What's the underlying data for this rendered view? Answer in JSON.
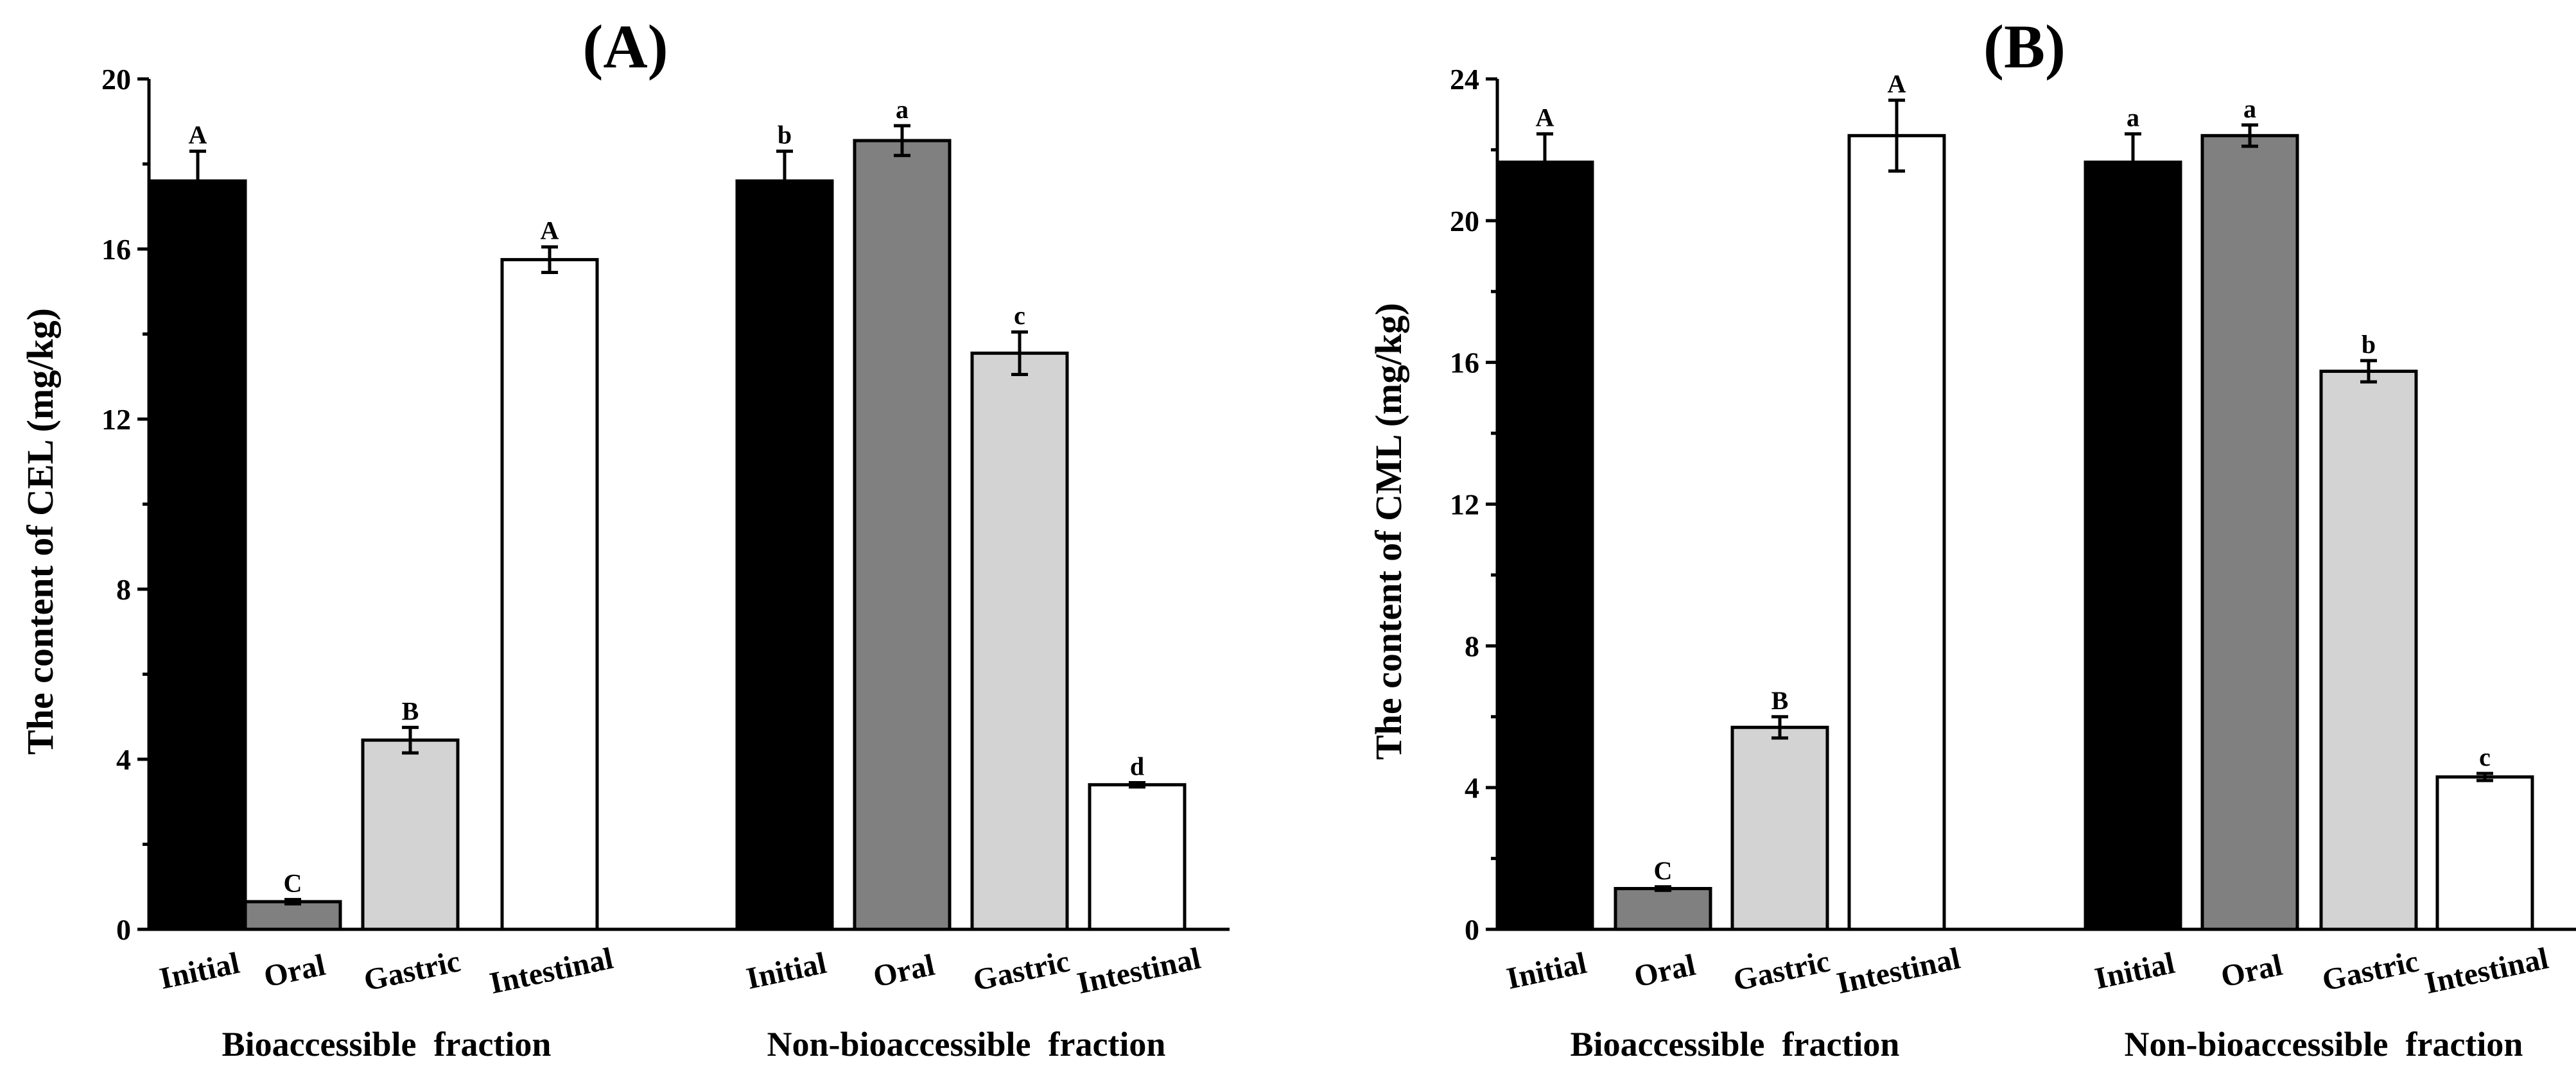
{
  "colors": {
    "Initial": "#000000",
    "Oral": "#808080",
    "Gastric": "#d3d3d3",
    "Intestinal": "#ffffff"
  },
  "chart_data": [
    {
      "type": "bar",
      "title": "(A)",
      "ylabel": "The content of CEL (mg/kg)",
      "ylim": [
        0,
        20
      ],
      "yticks": [
        0,
        4,
        8,
        12,
        16,
        20
      ],
      "groups": [
        {
          "name": "Bioaccessible  fraction",
          "bars": [
            {
              "category": "Initial",
              "value": 17.6,
              "error": 0.7,
              "label": "A"
            },
            {
              "category": "Oral",
              "value": 0.65,
              "error": 0.05,
              "label": "C"
            },
            {
              "category": "Gastric",
              "value": 4.45,
              "error": 0.3,
              "label": "B"
            },
            {
              "category": "Intestinal",
              "value": 15.75,
              "error": 0.3,
              "label": "A"
            }
          ]
        },
        {
          "name": "Non-bioaccessible  fraction",
          "bars": [
            {
              "category": "Initial",
              "value": 17.6,
              "error": 0.7,
              "label": "b"
            },
            {
              "category": "Oral",
              "value": 18.55,
              "error": 0.35,
              "label": "a"
            },
            {
              "category": "Gastric",
              "value": 13.55,
              "error": 0.5,
              "label": "c"
            },
            {
              "category": "Intestinal",
              "value": 3.4,
              "error": 0.05,
              "label": "d"
            }
          ]
        }
      ]
    },
    {
      "type": "bar",
      "title": "(B)",
      "ylabel": "The content of CML (mg/kg)",
      "ylim": [
        0,
        24
      ],
      "yticks": [
        0,
        4,
        8,
        12,
        16,
        20,
        24
      ],
      "groups": [
        {
          "name": "Bioaccessible  fraction",
          "bars": [
            {
              "category": "Initial",
              "value": 21.65,
              "error": 0.8,
              "label": "A"
            },
            {
              "category": "Oral",
              "value": 1.15,
              "error": 0.05,
              "label": "C"
            },
            {
              "category": "Gastric",
              "value": 5.7,
              "error": 0.3,
              "label": "B"
            },
            {
              "category": "Intestinal",
              "value": 22.4,
              "error": 1.0,
              "label": "A"
            }
          ]
        },
        {
          "name": "Non-bioaccessible  fraction",
          "bars": [
            {
              "category": "Initial",
              "value": 21.65,
              "error": 0.8,
              "label": "a"
            },
            {
              "category": "Oral",
              "value": 22.4,
              "error": 0.3,
              "label": "a"
            },
            {
              "category": "Gastric",
              "value": 15.75,
              "error": 0.3,
              "label": "b"
            },
            {
              "category": "Intestinal",
              "value": 4.3,
              "error": 0.1,
              "label": "c"
            }
          ]
        }
      ]
    }
  ]
}
